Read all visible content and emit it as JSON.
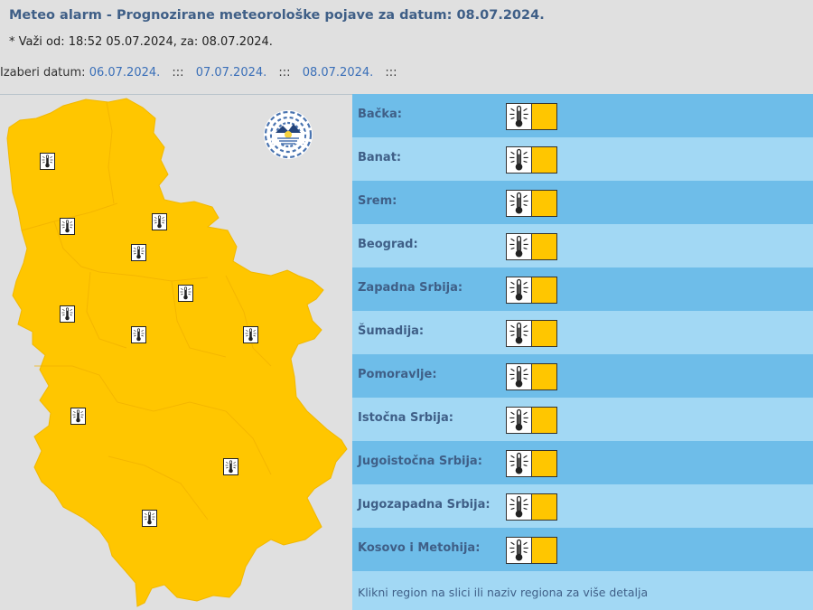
{
  "header": {
    "title": "Meteo alarm - Prognozirane meteorološke pojave za datum:  08.07.2024.",
    "valid_text": "* Važi od: 18:52 05.07.2024, za: 08.07.2024."
  },
  "date_nav": {
    "label": "Izaberi datum:",
    "separator": ":::",
    "dates": [
      "06.07.2024.",
      "07.07.2024.",
      "08.07.2024."
    ]
  },
  "logo": {
    "text": "РХМЗ СРБИЈЕ"
  },
  "map": {
    "fill_color": "#ffc600",
    "warning_icon": "thermometer-icon"
  },
  "regions": [
    {
      "name": "Bačka:",
      "warning": "high-temperature",
      "level_color": "#ffc600"
    },
    {
      "name": "Banat:",
      "warning": "high-temperature",
      "level_color": "#ffc600"
    },
    {
      "name": "Srem:",
      "warning": "high-temperature",
      "level_color": "#ffc600"
    },
    {
      "name": "Beograd:",
      "warning": "high-temperature",
      "level_color": "#ffc600"
    },
    {
      "name": "Zapadna Srbija:",
      "warning": "high-temperature",
      "level_color": "#ffc600"
    },
    {
      "name": "Šumadija:",
      "warning": "high-temperature",
      "level_color": "#ffc600"
    },
    {
      "name": "Pomoravlje:",
      "warning": "high-temperature",
      "level_color": "#ffc600"
    },
    {
      "name": "Istočna Srbija:",
      "warning": "high-temperature",
      "level_color": "#ffc600"
    },
    {
      "name": "Jugoistočna Srbija:",
      "warning": "high-temperature",
      "level_color": "#ffc600"
    },
    {
      "name": "Jugozapadna Srbija:",
      "warning": "high-temperature",
      "level_color": "#ffc600"
    },
    {
      "name": "Kosovo i Metohija:",
      "warning": "high-temperature",
      "level_color": "#ffc600"
    }
  ],
  "footer": {
    "text": "Klikni region na slici ili naziv regiona za više detalja"
  }
}
